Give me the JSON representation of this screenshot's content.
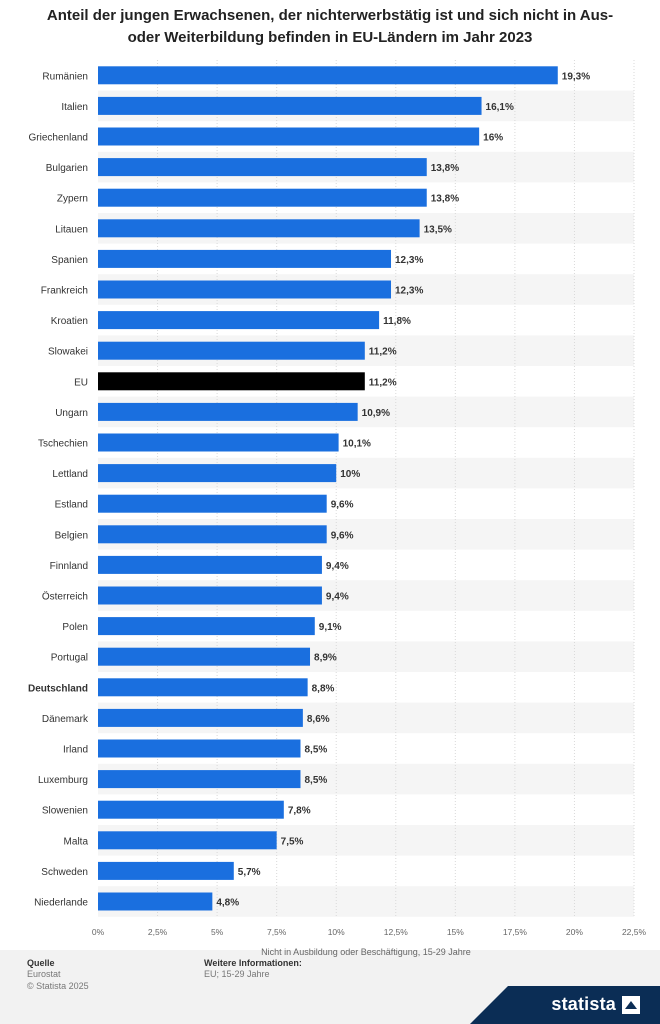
{
  "title": "Anteil der jungen Erwachsenen, der nichterwerbstätig ist und sich nicht in Aus- oder Weiterbildung befinden in EU-Ländern im Jahr 2023",
  "footer": {
    "source_label": "Quelle",
    "source_lines": [
      "Eurostat",
      "© Statista 2025"
    ],
    "info_label": "Weitere Informationen:",
    "info_lines": [
      "EU; 15-29 Jahre"
    ]
  },
  "brand": {
    "name": "statista"
  },
  "colors": {
    "bar": "#1a6fdf",
    "highlight": "#000000",
    "stripe": "#f5f5f5",
    "grid": "#d9d9d9"
  },
  "chart_data": {
    "type": "bar",
    "orientation": "horizontal",
    "title": "Anteil der jungen Erwachsenen, der nichterwerbstätig ist und sich nicht in Aus- oder Weiterbildung befinden in EU-Ländern im Jahr 2023",
    "xlabel": "Nicht in Ausbildung oder Beschäftigung, 15-29 Jahre",
    "ylabel": "",
    "xlim": [
      0,
      22.5
    ],
    "ticks": [
      0,
      2.5,
      5,
      7.5,
      10,
      12.5,
      15,
      17.5,
      20,
      22.5
    ],
    "tick_labels": [
      "0%",
      "2,5%",
      "5%",
      "7,5%",
      "10%",
      "12,5%",
      "15%",
      "17,5%",
      "20%",
      "22,5%"
    ],
    "categories": [
      "Rumänien",
      "Italien",
      "Griechenland",
      "Bulgarien",
      "Zypern",
      "Litauen",
      "Spanien",
      "Frankreich",
      "Kroatien",
      "Slowakei",
      "EU",
      "Ungarn",
      "Tschechien",
      "Lettland",
      "Estland",
      "Belgien",
      "Finnland",
      "Österreich",
      "Polen",
      "Portugal",
      "Deutschland",
      "Dänemark",
      "Irland",
      "Luxemburg",
      "Slowenien",
      "Malta",
      "Schweden",
      "Niederlande"
    ],
    "values": [
      19.3,
      16.1,
      16,
      13.8,
      13.8,
      13.5,
      12.3,
      12.3,
      11.8,
      11.2,
      11.2,
      10.9,
      10.1,
      10,
      9.6,
      9.6,
      9.4,
      9.4,
      9.1,
      8.9,
      8.8,
      8.6,
      8.5,
      8.5,
      7.8,
      7.5,
      5.7,
      4.8
    ],
    "value_labels": [
      "19,3%",
      "16,1%",
      "16%",
      "13,8%",
      "13,8%",
      "13,5%",
      "12,3%",
      "12,3%",
      "11,8%",
      "11,2%",
      "11,2%",
      "10,9%",
      "10,1%",
      "10%",
      "9,6%",
      "9,6%",
      "9,4%",
      "9,4%",
      "9,1%",
      "8,9%",
      "8,8%",
      "8,6%",
      "8,5%",
      "8,5%",
      "7,8%",
      "7,5%",
      "5,7%",
      "4,8%"
    ],
    "highlight_black": [
      "EU"
    ],
    "bold_labels": [
      "Deutschland"
    ],
    "grid": true,
    "legend": "none"
  }
}
